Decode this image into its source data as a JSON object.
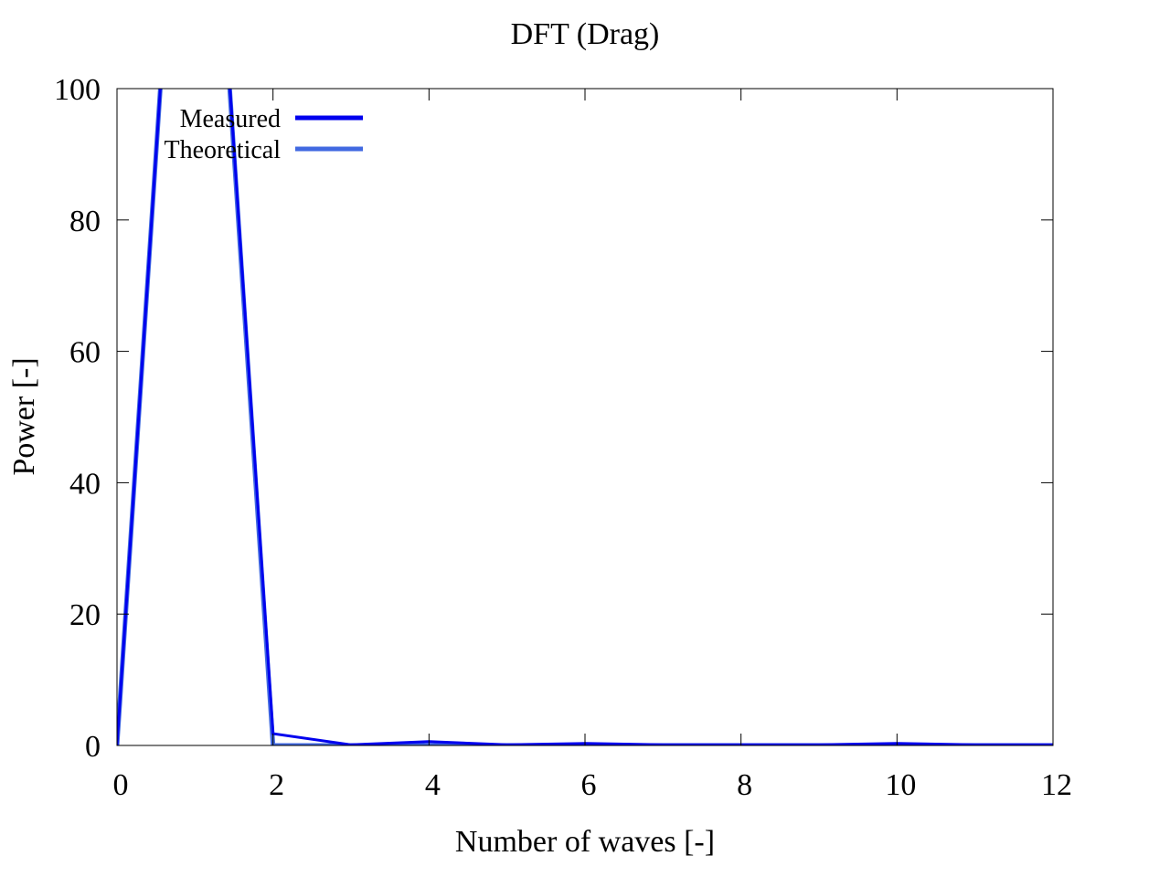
{
  "chart_data": {
    "type": "line",
    "title": "DFT (Drag)",
    "xlabel": "Number of waves [-]",
    "ylabel": "Power [-]",
    "xlim": [
      0,
      12
    ],
    "ylim": [
      0,
      100
    ],
    "xticks": [
      0,
      2,
      4,
      6,
      8,
      10,
      12
    ],
    "yticks": [
      0,
      20,
      40,
      60,
      80,
      100
    ],
    "grid": false,
    "legend_position": "top-left",
    "series": [
      {
        "name": "Measured",
        "color": "#0000ee",
        "x": [
          0,
          1,
          2,
          3,
          4,
          5,
          6,
          7,
          8,
          9,
          10,
          11,
          12
        ],
        "y": [
          0,
          180,
          1.8,
          0.1,
          0.6,
          0.1,
          0.3,
          0.1,
          0.1,
          0.1,
          0.3,
          0.1,
          0.1
        ]
      },
      {
        "name": "Theoretical",
        "color": "#4169e1",
        "x": [
          0,
          1,
          2,
          3,
          4,
          5,
          6,
          7,
          8,
          9,
          10,
          11,
          12
        ],
        "y": [
          0,
          180,
          0,
          0,
          0,
          0,
          0,
          0,
          0,
          0,
          0,
          0,
          0
        ]
      }
    ]
  }
}
